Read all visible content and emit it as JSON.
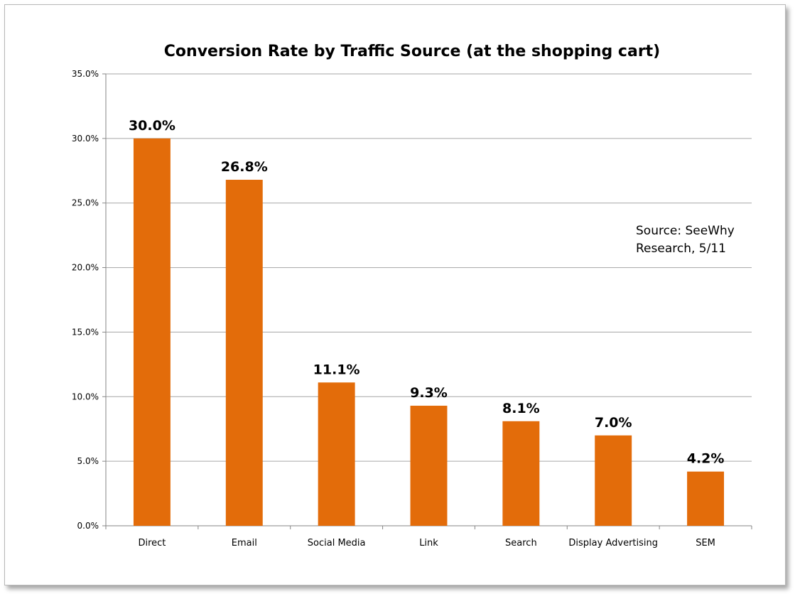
{
  "chart_data": {
    "type": "bar",
    "title": "Conversion Rate by Traffic Source (at the shopping cart)",
    "xlabel": "",
    "ylabel": "",
    "categories": [
      "Direct",
      "Email",
      "Social Media",
      "Link",
      "Search",
      "Display Advertising",
      "SEM"
    ],
    "values": [
      30.0,
      26.8,
      11.1,
      9.3,
      8.1,
      7.0,
      4.2
    ],
    "data_labels": [
      "30.0%",
      "26.8%",
      "11.1%",
      "9.3%",
      "8.1%",
      "7.0%",
      "4.2%"
    ],
    "ylim": [
      0,
      35
    ],
    "y_ticks": [
      0,
      5,
      10,
      15,
      20,
      25,
      30,
      35
    ],
    "y_tick_labels": [
      "0.0%",
      "5.0%",
      "10.0%",
      "15.0%",
      "20.0%",
      "25.0%",
      "30.0%",
      "35.0%"
    ],
    "grid": true,
    "legend": "none",
    "annotation": [
      "Source: SeeWhy",
      "Research, 5/11"
    ],
    "bar_color": "#E36C0A",
    "grid_color": "#A6A6A6"
  }
}
